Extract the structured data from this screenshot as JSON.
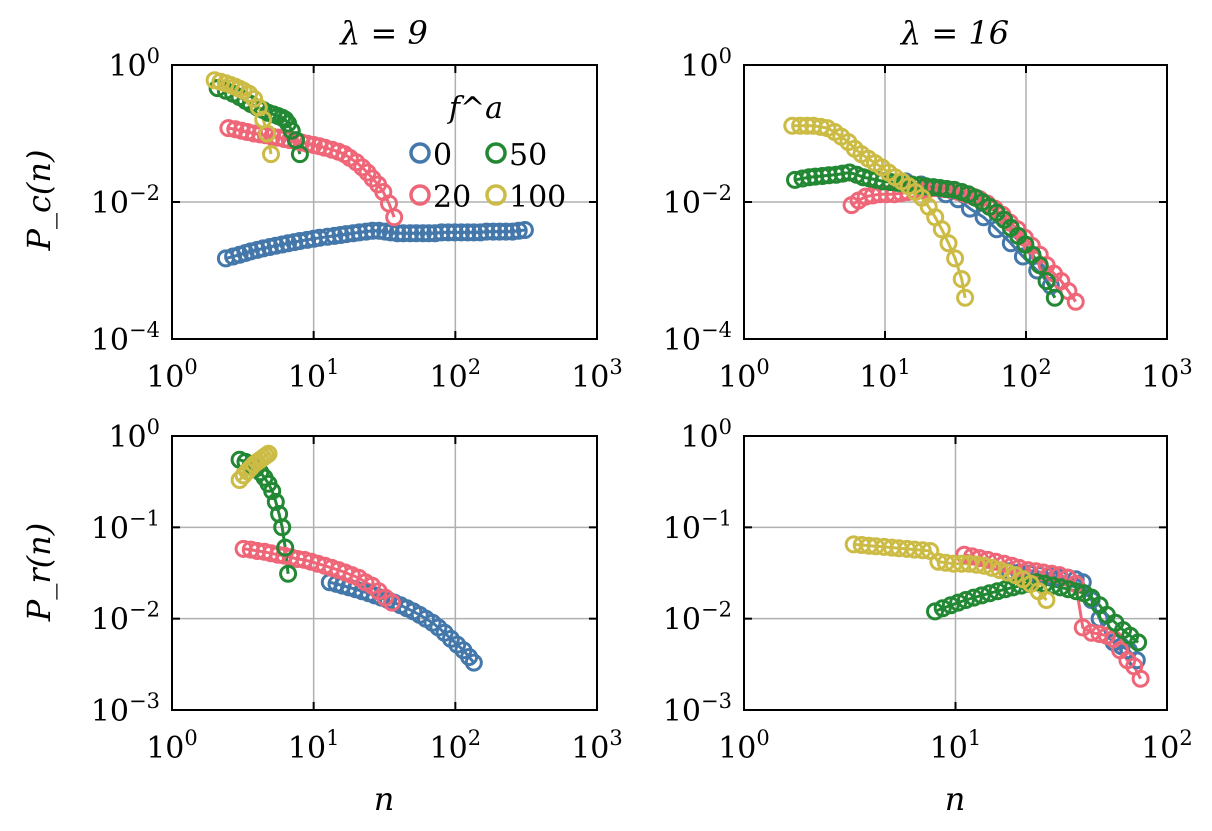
{
  "figure": {
    "legend_title": "f^a",
    "shared_xlabel": "n"
  },
  "colors": {
    "0": "#4477aa",
    "20": "#ee6677",
    "50": "#228833",
    "100": "#ccbb44",
    "grid": "#b0b0b0"
  },
  "legend": {
    "title": "f^a",
    "entries": [
      {
        "label": "0",
        "key": "0"
      },
      {
        "label": "50",
        "key": "50"
      },
      {
        "label": "20",
        "key": "20"
      },
      {
        "label": "100",
        "key": "100"
      }
    ]
  },
  "chart_data": [
    {
      "id": "top-left",
      "type": "scatter",
      "title": "λ = 9",
      "ylabel": "P_c(n)",
      "xlabel": "",
      "xscale": "log",
      "yscale": "log",
      "xlim_exp": [
        0,
        3
      ],
      "ylim_exp": [
        -4,
        0
      ],
      "xticks_exp": [
        0,
        1,
        2,
        3
      ],
      "yticks_exp": [
        -4,
        -2,
        0
      ],
      "grid": true,
      "legend": "upper-center",
      "series": [
        {
          "name": "0",
          "x": [
            2.4,
            2.7,
            3.0,
            3.3,
            3.6,
            4.0,
            4.4,
            4.9,
            5.4,
            6.0,
            6.6,
            7.3,
            8.0,
            9.0,
            10,
            11,
            12.5,
            14,
            15.5,
            17,
            19,
            21,
            23.5,
            26,
            29,
            32,
            35,
            39,
            43,
            48,
            53,
            59,
            65,
            72,
            80,
            89,
            99,
            110,
            122,
            135,
            150,
            166,
            185,
            205,
            228,
            253,
            280,
            310
          ],
          "y": [
            0.0015,
            0.0016,
            0.0017,
            0.0018,
            0.0019,
            0.002,
            0.0021,
            0.0022,
            0.0023,
            0.0024,
            0.0025,
            0.0026,
            0.0027,
            0.0028,
            0.0029,
            0.003,
            0.0031,
            0.0032,
            0.0033,
            0.0034,
            0.0035,
            0.0036,
            0.0037,
            0.0038,
            0.0038,
            0.0037,
            0.0036,
            0.0035,
            0.0035,
            0.0035,
            0.0035,
            0.0035,
            0.0035,
            0.0035,
            0.0036,
            0.0036,
            0.0036,
            0.0036,
            0.0036,
            0.0036,
            0.0036,
            0.0037,
            0.0037,
            0.0037,
            0.0037,
            0.0037,
            0.0038,
            0.0039
          ]
        },
        {
          "name": "20",
          "x": [
            2.5,
            2.8,
            3.1,
            3.4,
            3.8,
            4.2,
            4.6,
            5.1,
            5.6,
            6.2,
            6.8,
            7.5,
            8.2,
            9.0,
            10,
            11,
            12,
            13.5,
            15,
            16.5,
            18,
            20,
            22,
            24,
            26,
            28.5,
            31,
            34,
            37
          ],
          "y": [
            0.12,
            0.115,
            0.11,
            0.105,
            0.1,
            0.097,
            0.094,
            0.09,
            0.087,
            0.083,
            0.08,
            0.077,
            0.074,
            0.071,
            0.068,
            0.065,
            0.062,
            0.058,
            0.054,
            0.05,
            0.044,
            0.038,
            0.032,
            0.027,
            0.022,
            0.018,
            0.014,
            0.0095,
            0.006
          ]
        },
        {
          "name": "50",
          "x": [
            2.1,
            2.4,
            2.7,
            3.0,
            3.3,
            3.6,
            4.0,
            4.4,
            4.8,
            5.2,
            5.6,
            6.0,
            6.3,
            6.6,
            7.0,
            7.5,
            8.0
          ],
          "y": [
            0.46,
            0.42,
            0.38,
            0.34,
            0.3,
            0.27,
            0.24,
            0.22,
            0.2,
            0.19,
            0.18,
            0.17,
            0.16,
            0.14,
            0.11,
            0.08,
            0.05
          ]
        },
        {
          "name": "100",
          "x": [
            2.0,
            2.2,
            2.4,
            2.6,
            2.8,
            3.0,
            3.2,
            3.5,
            3.8,
            4.1,
            4.4,
            4.7,
            5.0
          ],
          "y": [
            0.6,
            0.57,
            0.54,
            0.51,
            0.48,
            0.45,
            0.42,
            0.38,
            0.32,
            0.24,
            0.16,
            0.1,
            0.05
          ]
        }
      ]
    },
    {
      "id": "top-right",
      "type": "scatter",
      "title": "λ = 16",
      "ylabel": "",
      "xlabel": "",
      "xscale": "log",
      "yscale": "log",
      "xlim_exp": [
        0,
        3
      ],
      "ylim_exp": [
        -4,
        0
      ],
      "xticks_exp": [
        0,
        1,
        2,
        3
      ],
      "yticks_exp": [
        -4,
        -2,
        0
      ],
      "grid": true,
      "series": [
        {
          "name": "0",
          "x": [
            14,
            18,
            22,
            27,
            33,
            40,
            50,
            62,
            78,
            95,
            120,
            150
          ],
          "y": [
            0.02,
            0.018,
            0.016,
            0.013,
            0.011,
            0.008,
            0.006,
            0.004,
            0.0025,
            0.0016,
            0.001,
            0.0006
          ]
        },
        {
          "name": "20",
          "x": [
            5.8,
            6.5,
            7.3,
            8.2,
            9.2,
            10.3,
            11.6,
            13,
            14.5,
            16.3,
            18.3,
            20.5,
            23,
            26,
            29,
            33,
            37,
            42,
            47,
            53,
            60,
            68,
            77,
            87,
            98,
            110,
            125,
            140,
            158,
            178,
            200,
            225
          ],
          "y": [
            0.009,
            0.0105,
            0.012,
            0.0125,
            0.013,
            0.013,
            0.013,
            0.0135,
            0.014,
            0.0145,
            0.015,
            0.0155,
            0.016,
            0.0155,
            0.015,
            0.014,
            0.013,
            0.012,
            0.011,
            0.0095,
            0.008,
            0.0065,
            0.005,
            0.004,
            0.003,
            0.0023,
            0.0017,
            0.0012,
            0.0009,
            0.0007,
            0.0005,
            0.00035
          ]
        },
        {
          "name": "50",
          "x": [
            2.3,
            2.6,
            2.9,
            3.2,
            3.6,
            4.0,
            4.5,
            5.0,
            5.6,
            6.3,
            7.0,
            7.8,
            8.7,
            9.7,
            11,
            12.3,
            13.8,
            15.5,
            17.4,
            19.5,
            22,
            24.5,
            27.5,
            31,
            35,
            39,
            44,
            49,
            55,
            62,
            70,
            78,
            88,
            99,
            111,
            125,
            140,
            160
          ],
          "y": [
            0.021,
            0.022,
            0.023,
            0.0235,
            0.024,
            0.0245,
            0.025,
            0.026,
            0.027,
            0.025,
            0.023,
            0.022,
            0.021,
            0.02,
            0.0195,
            0.019,
            0.0185,
            0.018,
            0.0175,
            0.017,
            0.0165,
            0.016,
            0.0155,
            0.015,
            0.014,
            0.013,
            0.0115,
            0.01,
            0.0085,
            0.007,
            0.0055,
            0.0042,
            0.0032,
            0.0024,
            0.0017,
            0.0012,
            0.0007,
            0.0004
          ]
        },
        {
          "name": "100",
          "x": [
            2.2,
            2.5,
            2.8,
            3.1,
            3.5,
            3.9,
            4.4,
            4.9,
            5.5,
            6.1,
            6.8,
            7.6,
            8.5,
            9.5,
            10.6,
            11.8,
            13.2,
            14.7,
            16.4,
            18.3,
            20.4,
            22.7,
            25.3,
            28.2,
            31.4,
            35,
            37
          ],
          "y": [
            0.13,
            0.13,
            0.13,
            0.13,
            0.125,
            0.12,
            0.105,
            0.09,
            0.075,
            0.06,
            0.05,
            0.043,
            0.037,
            0.032,
            0.027,
            0.023,
            0.02,
            0.017,
            0.014,
            0.0115,
            0.0085,
            0.006,
            0.004,
            0.0025,
            0.0015,
            0.00075,
            0.0004
          ]
        }
      ]
    },
    {
      "id": "bottom-left",
      "type": "scatter",
      "title": "",
      "ylabel": "P_r(n)",
      "xlabel": "n",
      "xscale": "log",
      "yscale": "log",
      "xlim_exp": [
        0,
        3
      ],
      "ylim_exp": [
        -3,
        0
      ],
      "xticks_exp": [
        0,
        1,
        2,
        3
      ],
      "yticks_exp": [
        -3,
        -2,
        -1,
        0
      ],
      "grid": true,
      "series": [
        {
          "name": "0",
          "x": [
            13,
            14.5,
            16,
            17.8,
            19.8,
            22,
            24.5,
            27,
            30,
            33.5,
            37,
            41,
            45.5,
            50.5,
            56,
            62,
            69,
            76,
            84,
            93,
            103,
            114,
            125,
            135
          ],
          "y": [
            0.025,
            0.024,
            0.023,
            0.022,
            0.021,
            0.02,
            0.019,
            0.018,
            0.017,
            0.016,
            0.015,
            0.014,
            0.013,
            0.012,
            0.011,
            0.01,
            0.009,
            0.008,
            0.007,
            0.006,
            0.0052,
            0.0045,
            0.0038,
            0.0033
          ]
        },
        {
          "name": "20",
          "x": [
            3.2,
            3.6,
            4.0,
            4.5,
            5.0,
            5.6,
            6.2,
            6.9,
            7.7,
            8.6,
            9.6,
            10.7,
            12,
            13.4,
            15,
            16.7,
            18.6,
            20.8,
            23.2,
            25.8,
            28.8,
            32,
            35.7
          ],
          "y": [
            0.058,
            0.057,
            0.055,
            0.054,
            0.052,
            0.05,
            0.049,
            0.047,
            0.045,
            0.044,
            0.042,
            0.04,
            0.038,
            0.036,
            0.034,
            0.032,
            0.03,
            0.028,
            0.025,
            0.023,
            0.02,
            0.017,
            0.015
          ]
        },
        {
          "name": "50",
          "x": [
            3.0,
            3.3,
            3.6,
            3.9,
            4.2,
            4.5,
            4.8,
            5.1,
            5.4,
            5.7,
            6.0,
            6.3,
            6.6
          ],
          "y": [
            0.55,
            0.52,
            0.48,
            0.44,
            0.4,
            0.35,
            0.3,
            0.25,
            0.19,
            0.14,
            0.1,
            0.06,
            0.031
          ]
        },
        {
          "name": "100",
          "x": [
            3.0,
            3.2,
            3.4,
            3.6,
            3.8,
            4.0,
            4.2,
            4.4,
            4.6,
            4.8
          ],
          "y": [
            0.33,
            0.37,
            0.41,
            0.45,
            0.49,
            0.52,
            0.55,
            0.58,
            0.61,
            0.64
          ]
        }
      ]
    },
    {
      "id": "bottom-right",
      "type": "scatter",
      "title": "",
      "ylabel": "",
      "xlabel": "n",
      "xscale": "log",
      "yscale": "log",
      "xlim_exp": [
        0,
        2
      ],
      "ylim_exp": [
        -3,
        0
      ],
      "xticks_exp": [
        0,
        1,
        2
      ],
      "yticks_exp": [
        -3,
        -2,
        -1,
        0
      ],
      "grid": true,
      "series": [
        {
          "name": "0",
          "x": [
            18,
            20,
            22.5,
            25,
            28,
            31,
            34,
            37,
            40,
            44,
            48,
            52,
            56,
            61,
            66,
            72
          ],
          "y": [
            0.033,
            0.032,
            0.031,
            0.03,
            0.029,
            0.028,
            0.028,
            0.027,
            0.025,
            0.016,
            0.01,
            0.0065,
            0.0055,
            0.005,
            0.0045,
            0.0035
          ]
        },
        {
          "name": "20",
          "x": [
            11,
            12,
            13,
            14.2,
            15.5,
            17,
            18.5,
            20,
            22,
            24,
            26,
            28.5,
            31,
            34,
            37,
            40,
            44,
            48,
            52,
            56,
            60,
            65,
            70,
            75
          ],
          "y": [
            0.05,
            0.048,
            0.046,
            0.044,
            0.042,
            0.04,
            0.038,
            0.036,
            0.034,
            0.033,
            0.032,
            0.031,
            0.03,
            0.028,
            0.024,
            0.008,
            0.007,
            0.0068,
            0.0065,
            0.006,
            0.0045,
            0.0035,
            0.003,
            0.0022
          ]
        },
        {
          "name": "50",
          "x": [
            8,
            8.7,
            9.5,
            10.3,
            11.2,
            12.2,
            13.3,
            14.5,
            15.8,
            17.2,
            18.7,
            20.4,
            22.2,
            24.2,
            26.4,
            28.8,
            31.4,
            34.2,
            37.3,
            40.6,
            44,
            48,
            52,
            57,
            62,
            67,
            73
          ],
          "y": [
            0.012,
            0.013,
            0.014,
            0.015,
            0.016,
            0.017,
            0.018,
            0.019,
            0.02,
            0.021,
            0.022,
            0.023,
            0.024,
            0.025,
            0.024,
            0.023,
            0.022,
            0.021,
            0.02,
            0.019,
            0.017,
            0.014,
            0.011,
            0.009,
            0.0075,
            0.0065,
            0.0055
          ]
        },
        {
          "name": "100",
          "x": [
            3.3,
            3.6,
            3.9,
            4.2,
            4.6,
            5.0,
            5.4,
            5.9,
            6.4,
            7.0,
            7.6,
            8.3,
            9.0,
            9.8,
            10.7,
            11.6,
            12.6,
            13.7,
            14.9,
            16.2,
            17.6,
            19.2,
            20.9,
            22.7,
            24.7,
            26.9
          ],
          "y": [
            0.065,
            0.064,
            0.063,
            0.062,
            0.061,
            0.06,
            0.059,
            0.058,
            0.057,
            0.056,
            0.055,
            0.042,
            0.041,
            0.04,
            0.04,
            0.04,
            0.039,
            0.038,
            0.036,
            0.034,
            0.032,
            0.03,
            0.027,
            0.024,
            0.02,
            0.016
          ]
        }
      ]
    }
  ]
}
